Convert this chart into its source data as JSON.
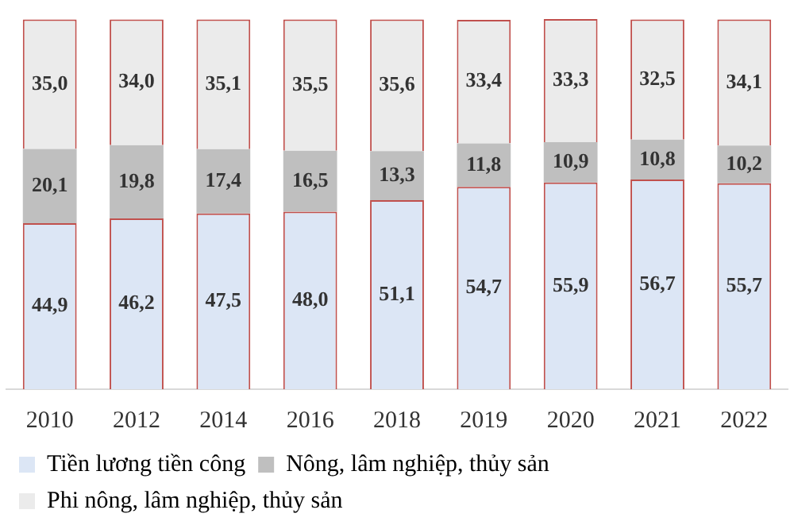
{
  "chart_data": {
    "type": "bar",
    "stacked": true,
    "categories": [
      "2010",
      "2012",
      "2014",
      "2016",
      "2018",
      "2019",
      "2020",
      "2021",
      "2022"
    ],
    "series": [
      {
        "name": "Tiền lương tiền công",
        "color": "#dce6f5",
        "values": [
          44.9,
          46.2,
          47.5,
          48.0,
          51.1,
          54.7,
          55.9,
          56.7,
          55.7
        ],
        "value_labels": [
          "44,9",
          "46,2",
          "47,5",
          "48,0",
          "51,1",
          "54,7",
          "55,9",
          "56,7",
          "55,7"
        ]
      },
      {
        "name": "Nông, lâm nghiệp, thủy sản",
        "color": "#bfbfbf",
        "values": [
          20.1,
          19.8,
          17.4,
          16.5,
          13.3,
          11.8,
          10.9,
          10.8,
          10.2
        ],
        "value_labels": [
          "20,1",
          "19,8",
          "17,4",
          "16,5",
          "13,3",
          "11,8",
          "10,9",
          "10,8",
          "10,2"
        ]
      },
      {
        "name": "Phi nông, lâm nghiệp, thủy sản",
        "color": "#ebebeb",
        "values": [
          35.0,
          34.0,
          35.1,
          35.5,
          35.6,
          33.4,
          33.3,
          32.5,
          34.1
        ],
        "value_labels": [
          "35,0",
          "34,0",
          "35,1",
          "35,5",
          "35,6",
          "33,4",
          "33,3",
          "32,5",
          "34,1"
        ]
      }
    ],
    "tick_labels": "x",
    "legend": "bottom"
  }
}
